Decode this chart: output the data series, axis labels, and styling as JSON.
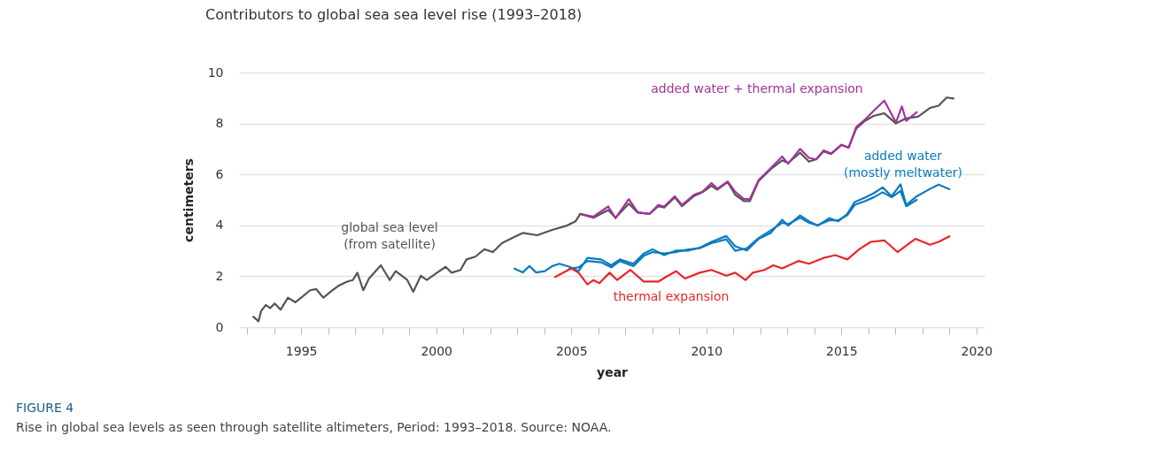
{
  "chart_data": {
    "type": "line",
    "title": "Contributors to global sea sea level rise (1993–2018)",
    "xlabel": "year",
    "ylabel": "centimeters",
    "xlim": [
      1992.7,
      2020.3
    ],
    "ylim": [
      0,
      10
    ],
    "xticks": [
      {
        "value": 1993,
        "label": null
      },
      {
        "value": 1994,
        "label": null
      },
      1995,
      {
        "value": 1996,
        "label": null
      },
      {
        "value": 1997,
        "label": null
      },
      {
        "value": 1998,
        "label": null
      },
      {
        "value": 1999,
        "label": null
      },
      2000,
      {
        "value": 2001,
        "label": null
      },
      {
        "value": 2002,
        "label": null
      },
      {
        "value": 2003,
        "label": null
      },
      {
        "value": 2004,
        "label": null
      },
      2005,
      {
        "value": 2006,
        "label": null
      },
      {
        "value": 2007,
        "label": null
      },
      {
        "value": 2008,
        "label": null
      },
      {
        "value": 2009,
        "label": null
      },
      2010,
      {
        "value": 2011,
        "label": null
      },
      {
        "value": 2012,
        "label": null
      },
      {
        "value": 2013,
        "label": null
      },
      {
        "value": 2014,
        "label": null
      },
      2015,
      {
        "value": 2016,
        "label": null
      },
      {
        "value": 2017,
        "label": null
      },
      {
        "value": 2018,
        "label": null
      },
      {
        "value": 2019,
        "label": null
      },
      2020
    ],
    "yticks": [
      0,
      2,
      4,
      6,
      8,
      10
    ],
    "grid": "y",
    "legend": false,
    "line_style": "solid",
    "marker": "none",
    "series": [
      {
        "name": "global sea level\n(from satellite)",
        "color": "#555555",
        "x": [
          1993.23,
          1993.42,
          1993.52,
          1993.69,
          1993.85,
          1994.02,
          1994.24,
          1994.51,
          1994.78,
          1995.0,
          1995.33,
          1995.55,
          1995.82,
          1996.09,
          1996.37,
          1996.7,
          1996.91,
          1997.08,
          1997.3,
          1997.51,
          1997.95,
          1998.28,
          1998.5,
          1998.93,
          1999.15,
          1999.43,
          1999.65,
          2000.03,
          2000.35,
          2000.57,
          2000.9,
          2001.12,
          2001.45,
          2001.78,
          2002.1,
          2002.43,
          2002.87,
          2003.2,
          2003.74,
          2004.29,
          2004.84,
          2005.16,
          2005.33,
          2005.82,
          2006.37,
          2006.64,
          2007.13,
          2007.46,
          2007.9,
          2008.22,
          2008.44,
          2008.83,
          2009.1,
          2009.54,
          2009.86,
          2010.19,
          2010.41,
          2010.79,
          2011.07,
          2011.39,
          2011.61,
          2011.94,
          2012.38,
          2012.81,
          2013.03,
          2013.47,
          2013.8,
          2014.07,
          2014.34,
          2014.62,
          2015.0,
          2015.27,
          2015.55,
          2015.87,
          2016.2,
          2016.59,
          2017.02,
          2017.4,
          2017.84,
          2018.28,
          2018.6,
          2018.9,
          2019.15
        ],
        "values": [
          0.41,
          0.23,
          0.64,
          0.87,
          0.75,
          0.93,
          0.69,
          1.16,
          0.98,
          1.16,
          1.45,
          1.5,
          1.16,
          1.39,
          1.62,
          1.79,
          1.85,
          2.14,
          1.45,
          1.91,
          2.43,
          1.85,
          2.2,
          1.85,
          1.39,
          2.02,
          1.85,
          2.14,
          2.37,
          2.14,
          2.25,
          2.66,
          2.77,
          3.06,
          2.95,
          3.3,
          3.53,
          3.7,
          3.61,
          3.82,
          3.99,
          4.16,
          4.45,
          4.3,
          4.6,
          4.3,
          4.85,
          4.5,
          4.45,
          4.75,
          4.7,
          5.1,
          4.75,
          5.15,
          5.3,
          5.55,
          5.4,
          5.7,
          5.2,
          4.95,
          4.95,
          5.75,
          6.2,
          6.55,
          6.45,
          6.85,
          6.5,
          6.6,
          6.9,
          6.8,
          7.15,
          7.05,
          7.8,
          8.1,
          8.3,
          8.4,
          8.0,
          8.2,
          8.27,
          8.61,
          8.7,
          9.02,
          8.98
        ]
      },
      {
        "name": "added water + thermal expansion",
        "color": "#a3339d",
        "x": [
          2005.33,
          2005.82,
          2006.37,
          2006.64,
          2007.13,
          2007.46,
          2007.9,
          2008.22,
          2008.44,
          2008.83,
          2009.1,
          2009.54,
          2009.86,
          2010.19,
          2010.41,
          2010.79,
          2011.07,
          2011.39,
          2011.61,
          2011.94,
          2012.38,
          2012.81,
          2013.03,
          2013.47,
          2013.8,
          2014.07,
          2014.34,
          2014.62,
          2015.0,
          2015.27,
          2015.55,
          2015.87,
          2016.2,
          2016.59,
          2017.02,
          2017.24,
          2017.4,
          2017.79
        ],
        "values": [
          4.45,
          4.34,
          4.74,
          4.28,
          5.03,
          4.51,
          4.45,
          4.8,
          4.74,
          5.14,
          4.8,
          5.2,
          5.32,
          5.66,
          5.44,
          5.72,
          5.32,
          5.03,
          5.03,
          5.78,
          6.24,
          6.7,
          6.42,
          7.0,
          6.65,
          6.59,
          6.94,
          6.82,
          7.17,
          7.05,
          7.86,
          8.15,
          8.5,
          8.9,
          8.04,
          8.67,
          8.1,
          8.44
        ]
      },
      {
        "name": "added water\n(mostly meltwater)",
        "color": "#0a7bbf",
        "x": [
          2002.9,
          2003.2,
          2003.45,
          2003.7,
          2004.02,
          2004.3,
          2004.56,
          2004.94,
          2005.27,
          2005.6,
          2006.1,
          2006.48,
          2006.8,
          2007.3,
          2007.68,
          2008.01,
          2008.44,
          2008.88,
          2009.32,
          2009.75,
          2010.19,
          2010.74,
          2011.07,
          2011.5,
          2011.94,
          2012.38,
          2012.81,
          2013.03,
          2013.47,
          2013.8,
          2014.12,
          2014.56,
          2014.89,
          2015.22,
          2015.49,
          2015.87,
          2016.2,
          2016.53,
          2016.86,
          2017.19,
          2017.4,
          2017.79,
          2018.28,
          2018.6,
          2019.0
        ],
        "values": [
          2.3,
          2.15,
          2.4,
          2.15,
          2.2,
          2.4,
          2.49,
          2.37,
          2.2,
          2.72,
          2.66,
          2.43,
          2.66,
          2.49,
          2.89,
          3.06,
          2.83,
          3.01,
          3.01,
          3.12,
          3.35,
          3.58,
          3.18,
          3.01,
          3.47,
          3.7,
          4.22,
          3.99,
          4.39,
          4.16,
          3.99,
          4.28,
          4.16,
          4.45,
          4.91,
          5.09,
          5.26,
          5.49,
          5.14,
          5.61,
          4.8,
          5.14,
          5.43,
          5.6,
          5.42
        ]
      },
      {
        "color": "#0a7bbf",
        "x": [
          2004.94,
          2005.27,
          2005.6,
          2006.1,
          2006.48,
          2006.8,
          2007.3,
          2007.68,
          2008.01,
          2008.44,
          2008.88,
          2009.32,
          2009.75,
          2010.19,
          2010.74,
          2011.07,
          2011.5,
          2011.94,
          2012.38,
          2012.81,
          2013.03,
          2013.47,
          2013.8,
          2014.12,
          2014.56,
          2014.89,
          2015.22,
          2015.49,
          2015.87,
          2016.2,
          2016.53,
          2016.86,
          2017.19,
          2017.4,
          2017.79
        ],
        "values": [
          2.3,
          2.35,
          2.6,
          2.55,
          2.35,
          2.6,
          2.4,
          2.8,
          2.95,
          2.9,
          2.95,
          3.05,
          3.1,
          3.3,
          3.45,
          3.0,
          3.1,
          3.5,
          3.8,
          4.1,
          4.05,
          4.3,
          4.1,
          4.0,
          4.2,
          4.2,
          4.4,
          4.8,
          4.95,
          5.1,
          5.3,
          5.1,
          5.35,
          4.75,
          5.0
        ]
      },
      {
        "name": "thermal expansion",
        "color": "#e8262a",
        "x": [
          2004.4,
          2005.0,
          2005.27,
          2005.6,
          2005.82,
          2006.04,
          2006.42,
          2006.7,
          2007.19,
          2007.68,
          2008.22,
          2008.5,
          2008.88,
          2009.21,
          2009.75,
          2010.19,
          2010.74,
          2011.07,
          2011.45,
          2011.72,
          2012.15,
          2012.48,
          2012.81,
          2013.42,
          2013.8,
          2014.34,
          2014.78,
          2015.22,
          2015.66,
          2016.09,
          2016.59,
          2017.08,
          2017.74,
          2018.28,
          2018.6,
          2019.0
        ],
        "values": [
          1.97,
          2.31,
          2.14,
          1.68,
          1.85,
          1.73,
          2.14,
          1.85,
          2.25,
          1.79,
          1.79,
          1.97,
          2.2,
          1.91,
          2.14,
          2.25,
          2.02,
          2.14,
          1.85,
          2.14,
          2.25,
          2.43,
          2.31,
          2.6,
          2.49,
          2.72,
          2.83,
          2.66,
          3.06,
          3.35,
          3.41,
          2.95,
          3.47,
          3.24,
          3.35,
          3.57
        ]
      }
    ],
    "annotations": [
      "FIGURE 4",
      "Rise in global sea levels as seen through satellite altimeters, Period: 1993–2018. Source: NOAA."
    ]
  }
}
